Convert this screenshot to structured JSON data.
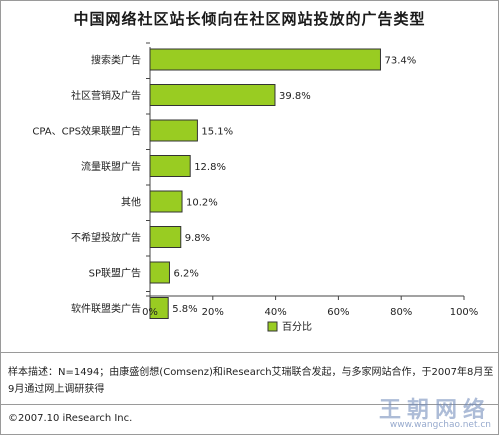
{
  "title": "中国网络社区站长倾向在社区网站投放的广告类型",
  "chart_data": {
    "type": "bar",
    "orientation": "horizontal",
    "categories": [
      "搜索类广告",
      "社区营销及广告",
      "CPA、CPS效果联盟广告",
      "流量联盟广告",
      "其他",
      "不希望投放广告",
      "SP联盟广告",
      "软件联盟类广告"
    ],
    "series": [
      {
        "name": "百分比",
        "values": [
          73.4,
          39.8,
          15.1,
          12.8,
          10.2,
          9.8,
          6.2,
          5.8
        ]
      }
    ],
    "data_labels": [
      "73.4%",
      "39.8%",
      "15.1%",
      "12.8%",
      "10.2%",
      "9.8%",
      "6.2%",
      "5.8%"
    ],
    "xlim": [
      0,
      100
    ],
    "x_ticks": [
      "0%",
      "20%",
      "40%",
      "60%",
      "80%",
      "100%"
    ],
    "legend_position": "bottom-center",
    "grid": false,
    "bar_color": "#99cc22",
    "bar_border": "#333333"
  },
  "footer": {
    "note": "样本描述：N=1494；由康盛创想(Comsenz)和iResearch艾瑞联合发起，与多家网站合作，于2007年8月至9月通过网上调研获得",
    "copyright": "©2007.10 iResearch Inc.",
    "watermark_logo": "王朝网络",
    "watermark_url": "www.wangchao.net.cn"
  }
}
